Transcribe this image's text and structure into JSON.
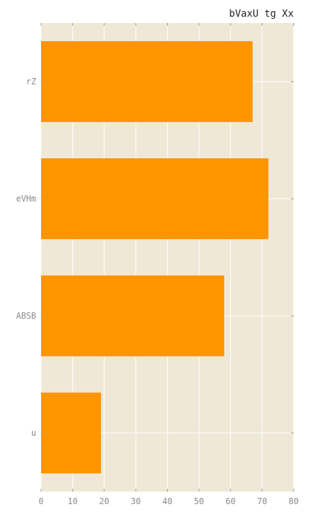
{
  "chart_data": {
    "type": "bar",
    "orientation": "horizontal",
    "title": "bVaxU tg Xx",
    "categories": [
      "rZ",
      "eVHm",
      "ABSB",
      "u"
    ],
    "values": [
      67,
      72,
      58,
      19
    ],
    "xlim": [
      0,
      80
    ],
    "xticks": [
      0,
      10,
      20,
      30,
      40,
      50,
      60,
      70,
      80
    ],
    "xlabel": "",
    "ylabel": "",
    "grid": true,
    "colors": {
      "bar": "#ff9500",
      "plot_background": "#efe8d7",
      "grid": "#ffffff",
      "tick_label": "#8a8a8a",
      "title": "#222222"
    }
  }
}
